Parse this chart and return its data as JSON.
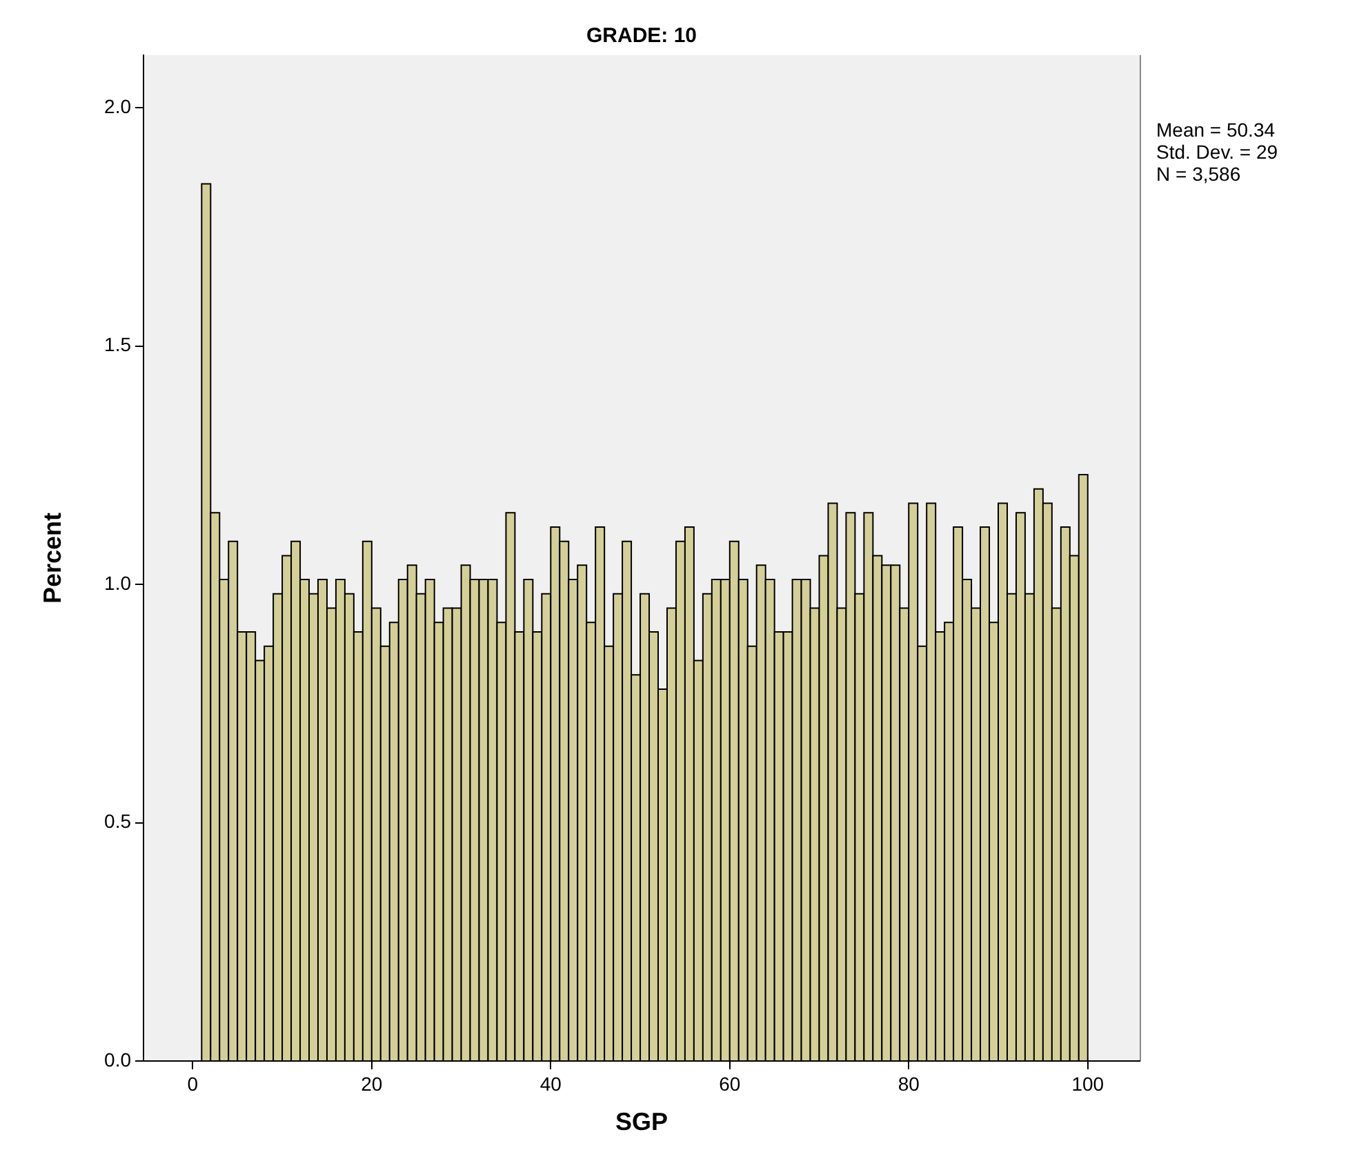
{
  "chart_data": {
    "type": "histogram",
    "title": "GRADE: 10",
    "xlabel": "SGP",
    "ylabel": "Percent",
    "bins": [
      1,
      2,
      3,
      4,
      5,
      6,
      7,
      8,
      9,
      10,
      11,
      12,
      13,
      14,
      15,
      16,
      17,
      18,
      19,
      20,
      21,
      22,
      23,
      24,
      25,
      26,
      27,
      28,
      29,
      30,
      31,
      32,
      33,
      34,
      35,
      36,
      37,
      38,
      39,
      40,
      41,
      42,
      43,
      44,
      45,
      46,
      47,
      48,
      49,
      50,
      51,
      52,
      53,
      54,
      55,
      56,
      57,
      58,
      59,
      60,
      61,
      62,
      63,
      64,
      65,
      66,
      67,
      68,
      69,
      70,
      71,
      72,
      73,
      74,
      75,
      76,
      77,
      78,
      79,
      80,
      81,
      82,
      83,
      84,
      85,
      86,
      87,
      88,
      89,
      90,
      91,
      92,
      93,
      94,
      95,
      96,
      97,
      98,
      99,
      100
    ],
    "values": [
      1.84,
      1.15,
      1.01,
      1.09,
      0.9,
      0.9,
      0.84,
      0.87,
      0.98,
      1.06,
      1.09,
      1.01,
      0.98,
      1.01,
      0.95,
      1.01,
      0.98,
      0.9,
      1.09,
      0.95,
      0.87,
      0.92,
      1.01,
      1.04,
      0.98,
      1.01,
      0.92,
      0.95,
      0.95,
      1.04,
      1.01,
      1.01,
      1.01,
      0.92,
      1.15,
      0.9,
      1.01,
      0.9,
      0.98,
      1.12,
      1.09,
      1.01,
      1.04,
      0.92,
      1.12,
      0.87,
      0.98,
      1.09,
      0.81,
      0.98,
      0.9,
      0.78,
      0.95,
      1.09,
      1.12,
      0.84,
      0.98,
      1.01,
      1.01,
      1.09,
      1.01,
      0.87,
      1.04,
      1.01,
      0.9,
      0.9,
      1.01,
      1.01,
      0.95,
      1.06,
      1.17,
      0.95,
      1.15,
      0.98,
      1.15,
      1.06,
      1.04,
      1.04,
      0.95,
      1.17,
      0.87,
      1.17,
      0.9,
      0.92,
      1.12,
      1.01,
      0.95,
      1.12,
      0.92,
      1.17,
      0.98,
      1.15,
      0.98,
      1.2,
      1.17,
      0.95,
      1.12,
      1.06,
      1.23
    ],
    "color": "#d4cf98",
    "xlim": [
      -5.5,
      105.8
    ],
    "xticks": [
      0,
      20,
      40,
      60,
      80,
      100
    ],
    "ylim": [
      0,
      2.11
    ],
    "yticks": [
      {
        "value": 0,
        "label": "0.0"
      },
      {
        "value": 0.5,
        "label": "0.5"
      },
      {
        "value": 1,
        "label": "1.0"
      },
      {
        "value": 1.5,
        "label": "1.5"
      },
      {
        "value": 2,
        "label": "2.0"
      }
    ],
    "grid": false,
    "legend": false,
    "annotations": [
      "Mean = 50.34",
      "Std. Dev. = 29",
      "N = 3,586"
    ]
  }
}
